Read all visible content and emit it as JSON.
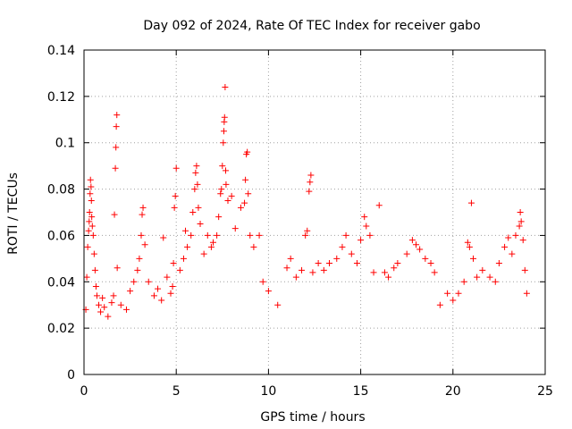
{
  "chart_data": {
    "type": "scatter",
    "title": "Day 092 of 2024, Rate Of TEC Index for receiver gabo",
    "xlabel": "GPS time / hours",
    "ylabel": "ROTI / TECUs",
    "xlim": [
      0,
      25
    ],
    "ylim": [
      0,
      0.14
    ],
    "grid": true,
    "marker": "+",
    "marker_color": "#ff0000",
    "x_ticks": [
      0,
      5,
      10,
      15,
      20,
      25
    ],
    "x_tick_labels": [
      "0",
      "5",
      "10",
      "15",
      "20",
      "25"
    ],
    "y_ticks": [
      0,
      0.02,
      0.04,
      0.06,
      0.08,
      0.1,
      0.12,
      0.14
    ],
    "y_tick_labels": [
      "0",
      "0.02",
      "0.04",
      "0.06",
      "0.08",
      "0.1",
      "0.12",
      "0.14"
    ],
    "series": [
      {
        "name": "ROTI",
        "points": [
          [
            0.1,
            0.028
          ],
          [
            0.15,
            0.042
          ],
          [
            0.2,
            0.055
          ],
          [
            0.25,
            0.062
          ],
          [
            0.28,
            0.066
          ],
          [
            0.3,
            0.07
          ],
          [
            0.33,
            0.078
          ],
          [
            0.35,
            0.084
          ],
          [
            0.38,
            0.081
          ],
          [
            0.4,
            0.075
          ],
          [
            0.42,
            0.068
          ],
          [
            0.45,
            0.064
          ],
          [
            0.5,
            0.06
          ],
          [
            0.55,
            0.052
          ],
          [
            0.6,
            0.045
          ],
          [
            0.65,
            0.038
          ],
          [
            0.7,
            0.034
          ],
          [
            0.8,
            0.03
          ],
          [
            0.9,
            0.027
          ],
          [
            1.0,
            0.033
          ],
          [
            1.1,
            0.029
          ],
          [
            1.3,
            0.025
          ],
          [
            1.5,
            0.031
          ],
          [
            1.6,
            0.034
          ],
          [
            1.65,
            0.069
          ],
          [
            1.7,
            0.089
          ],
          [
            1.73,
            0.098
          ],
          [
            1.75,
            0.107
          ],
          [
            1.78,
            0.112
          ],
          [
            1.8,
            0.046
          ],
          [
            2.0,
            0.03
          ],
          [
            2.3,
            0.028
          ],
          [
            2.5,
            0.036
          ],
          [
            2.7,
            0.04
          ],
          [
            2.9,
            0.045
          ],
          [
            3.0,
            0.05
          ],
          [
            3.1,
            0.06
          ],
          [
            3.15,
            0.069
          ],
          [
            3.2,
            0.072
          ],
          [
            3.3,
            0.056
          ],
          [
            3.5,
            0.04
          ],
          [
            3.8,
            0.034
          ],
          [
            4.0,
            0.037
          ],
          [
            4.2,
            0.032
          ],
          [
            4.3,
            0.059
          ],
          [
            4.5,
            0.042
          ],
          [
            4.7,
            0.035
          ],
          [
            4.8,
            0.038
          ],
          [
            4.85,
            0.048
          ],
          [
            4.9,
            0.072
          ],
          [
            4.95,
            0.077
          ],
          [
            5.0,
            0.089
          ],
          [
            5.2,
            0.045
          ],
          [
            5.4,
            0.05
          ],
          [
            5.5,
            0.062
          ],
          [
            5.6,
            0.055
          ],
          [
            5.8,
            0.06
          ],
          [
            5.9,
            0.07
          ],
          [
            6.0,
            0.08
          ],
          [
            6.05,
            0.087
          ],
          [
            6.1,
            0.09
          ],
          [
            6.15,
            0.082
          ],
          [
            6.2,
            0.072
          ],
          [
            6.3,
            0.065
          ],
          [
            6.5,
            0.052
          ],
          [
            6.7,
            0.06
          ],
          [
            6.9,
            0.055
          ],
          [
            7.0,
            0.057
          ],
          [
            7.2,
            0.06
          ],
          [
            7.3,
            0.068
          ],
          [
            7.4,
            0.078
          ],
          [
            7.45,
            0.08
          ],
          [
            7.5,
            0.09
          ],
          [
            7.55,
            0.1
          ],
          [
            7.58,
            0.105
          ],
          [
            7.6,
            0.109
          ],
          [
            7.62,
            0.111
          ],
          [
            7.65,
            0.124
          ],
          [
            7.68,
            0.088
          ],
          [
            7.7,
            0.082
          ],
          [
            7.8,
            0.075
          ],
          [
            8.0,
            0.077
          ],
          [
            8.2,
            0.063
          ],
          [
            8.5,
            0.072
          ],
          [
            8.7,
            0.074
          ],
          [
            8.75,
            0.084
          ],
          [
            8.8,
            0.095
          ],
          [
            8.85,
            0.096
          ],
          [
            8.9,
            0.078
          ],
          [
            9.0,
            0.06
          ],
          [
            9.2,
            0.055
          ],
          [
            9.5,
            0.06
          ],
          [
            9.7,
            0.04
          ],
          [
            10.0,
            0.036
          ],
          [
            10.5,
            0.03
          ],
          [
            11.0,
            0.046
          ],
          [
            11.2,
            0.05
          ],
          [
            11.5,
            0.042
          ],
          [
            11.8,
            0.045
          ],
          [
            12.0,
            0.06
          ],
          [
            12.1,
            0.062
          ],
          [
            12.2,
            0.079
          ],
          [
            12.25,
            0.083
          ],
          [
            12.3,
            0.086
          ],
          [
            12.4,
            0.044
          ],
          [
            12.7,
            0.048
          ],
          [
            13.0,
            0.045
          ],
          [
            13.3,
            0.048
          ],
          [
            13.7,
            0.05
          ],
          [
            14.0,
            0.055
          ],
          [
            14.2,
            0.06
          ],
          [
            14.5,
            0.052
          ],
          [
            14.8,
            0.048
          ],
          [
            15.0,
            0.058
          ],
          [
            15.2,
            0.068
          ],
          [
            15.3,
            0.064
          ],
          [
            15.5,
            0.06
          ],
          [
            15.7,
            0.044
          ],
          [
            16.0,
            0.073
          ],
          [
            16.3,
            0.044
          ],
          [
            16.5,
            0.042
          ],
          [
            16.8,
            0.046
          ],
          [
            17.0,
            0.048
          ],
          [
            17.5,
            0.052
          ],
          [
            17.8,
            0.058
          ],
          [
            18.0,
            0.056
          ],
          [
            18.2,
            0.054
          ],
          [
            18.5,
            0.05
          ],
          [
            18.8,
            0.048
          ],
          [
            19.0,
            0.044
          ],
          [
            19.3,
            0.03
          ],
          [
            19.7,
            0.035
          ],
          [
            20.0,
            0.032
          ],
          [
            20.3,
            0.035
          ],
          [
            20.6,
            0.04
          ],
          [
            20.8,
            0.057
          ],
          [
            20.9,
            0.055
          ],
          [
            21.0,
            0.074
          ],
          [
            21.1,
            0.05
          ],
          [
            21.3,
            0.042
          ],
          [
            21.6,
            0.045
          ],
          [
            22.0,
            0.042
          ],
          [
            22.3,
            0.04
          ],
          [
            22.5,
            0.048
          ],
          [
            22.8,
            0.055
          ],
          [
            23.0,
            0.059
          ],
          [
            23.2,
            0.052
          ],
          [
            23.4,
            0.06
          ],
          [
            23.6,
            0.064
          ],
          [
            23.65,
            0.07
          ],
          [
            23.7,
            0.066
          ],
          [
            23.8,
            0.058
          ],
          [
            23.9,
            0.045
          ],
          [
            24.0,
            0.035
          ]
        ]
      }
    ]
  }
}
